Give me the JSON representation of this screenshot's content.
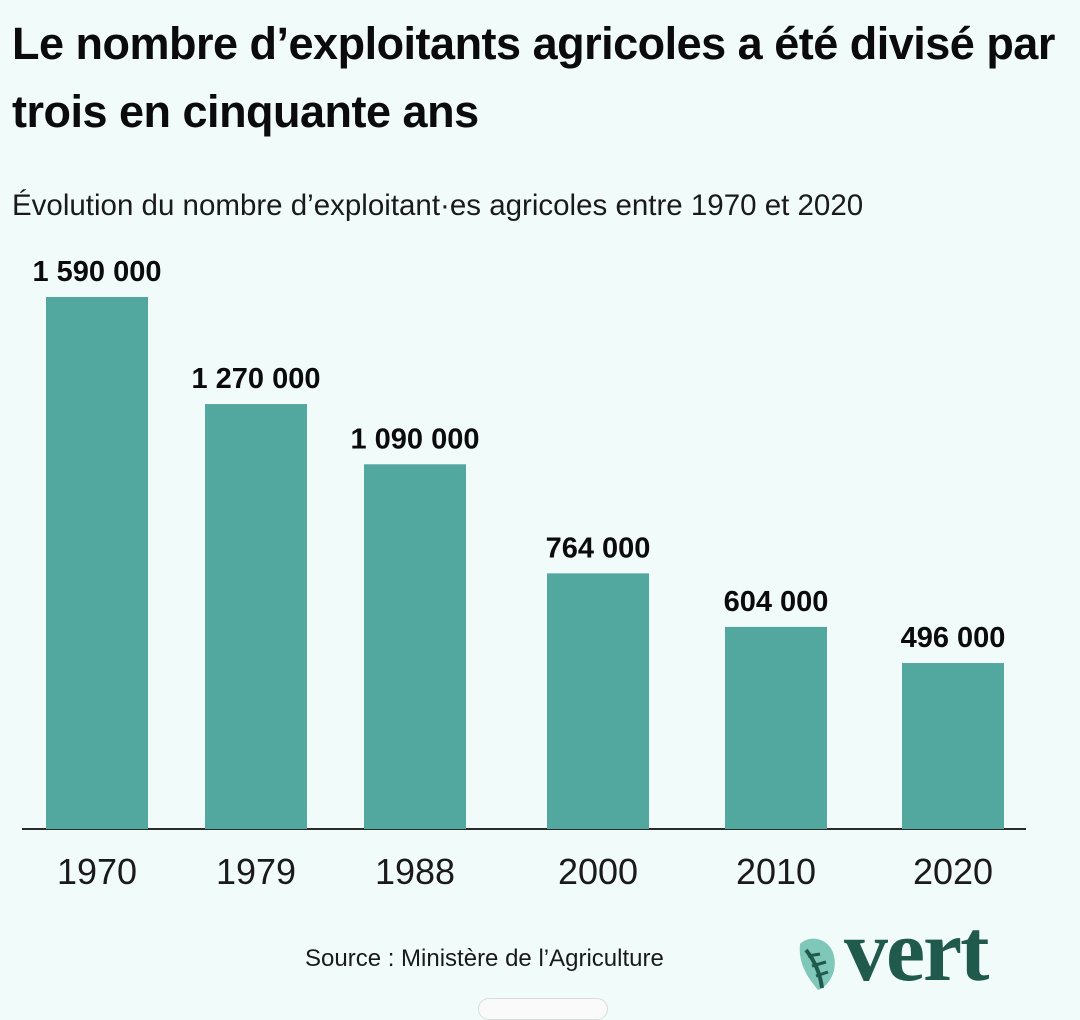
{
  "title": "Le nombre d’exploitants agricoles a été divisé par trois en cinquante ans",
  "subtitle": "Évolution du nombre d’exploitant·es agricoles entre 1970 et 2020",
  "source": "Source : Ministère de l’Agriculture",
  "logo": {
    "text": "vert",
    "icon": "leaf-icon"
  },
  "colors": {
    "bar": "#52a79e",
    "background": "#f1fbfa",
    "axis": "#2b2b2b",
    "logo": "#1f5a4c"
  },
  "chart_data": {
    "type": "bar",
    "title": "Le nombre d’exploitants agricoles a été divisé par trois en cinquante ans",
    "subtitle": "Évolution du nombre d’exploitant·es agricoles entre 1970 et 2020",
    "categories": [
      "1970",
      "1979",
      "1988",
      "2000",
      "2010",
      "2020"
    ],
    "values": [
      1590000,
      1270000,
      1090000,
      764000,
      604000,
      496000
    ],
    "value_labels": [
      "1 590 000",
      "1 270 000",
      "1 090 000",
      "764 000",
      "604 000",
      "496 000"
    ],
    "xlabel": "",
    "ylabel": "",
    "ylim": [
      0,
      1590000
    ],
    "grid": false,
    "legend": "none"
  }
}
